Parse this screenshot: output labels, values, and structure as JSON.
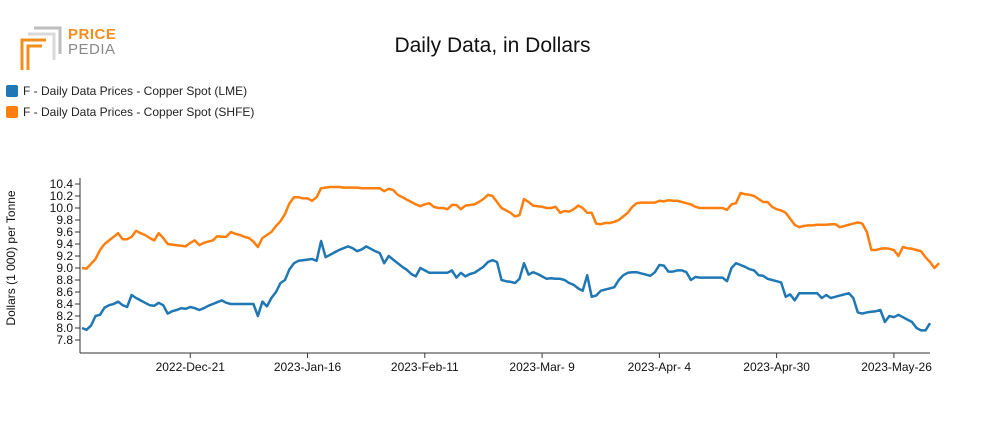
{
  "logo": {
    "line1": "PRICE",
    "line2": "PEDIA"
  },
  "chart_data": {
    "type": "line",
    "title": "Daily Data, in Dollars",
    "xlabel": "",
    "ylabel": "Dollars (1 000) per Tonne",
    "ylim": [
      7.8,
      10.4
    ],
    "yticks": [
      "7.8",
      "8.0",
      "8.2",
      "8.4",
      "8.6",
      "8.8",
      "9.0",
      "9.2",
      "9.4",
      "9.6",
      "9.8",
      "10.0",
      "10.2",
      "10.4"
    ],
    "xticks": [
      "2022-Dec-21",
      "2023-Jan-16",
      "2023-Feb-11",
      "2023-Mar- 9",
      "2023-Apr- 4",
      "2023-Apr-30",
      "2023-May-26"
    ],
    "xticks_index": [
      24,
      50,
      76,
      102,
      128,
      154,
      180
    ],
    "grid": false,
    "legend_position": "top-left",
    "series": [
      {
        "name": "F - Daily Data Prices - Copper Spot (LME)",
        "color": "#1f77b4",
        "values": [
          8.0,
          7.97,
          8.04,
          8.2,
          8.22,
          8.34,
          8.38,
          8.4,
          8.44,
          8.38,
          8.35,
          8.55,
          8.5,
          8.46,
          8.42,
          8.38,
          8.37,
          8.42,
          8.38,
          8.24,
          8.28,
          8.3,
          8.33,
          8.32,
          8.35,
          8.33,
          8.3,
          8.33,
          8.37,
          8.4,
          8.43,
          8.46,
          8.42,
          8.4,
          8.4,
          8.4,
          8.4,
          8.4,
          8.4,
          8.2,
          8.44,
          8.36,
          8.5,
          8.6,
          8.75,
          8.8,
          8.98,
          9.08,
          9.12,
          9.13,
          9.14,
          9.15,
          9.12,
          9.45,
          9.18,
          9.22,
          9.26,
          9.3,
          9.33,
          9.36,
          9.33,
          9.28,
          9.31,
          9.36,
          9.32,
          9.28,
          9.25,
          9.08,
          9.2,
          9.14,
          9.08,
          9.02,
          8.97,
          8.9,
          8.86,
          9.0,
          8.96,
          8.92,
          8.92,
          8.92,
          8.92,
          8.92,
          8.96,
          8.84,
          8.92,
          8.86,
          8.9,
          8.92,
          8.97,
          9.02,
          9.1,
          9.13,
          9.1,
          8.8,
          8.78,
          8.77,
          8.75,
          8.82,
          9.08,
          8.89,
          8.93,
          8.9,
          8.86,
          8.82,
          8.83,
          8.82,
          8.82,
          8.8,
          8.75,
          8.72,
          8.66,
          8.62,
          8.88,
          8.52,
          8.54,
          8.62,
          8.64,
          8.66,
          8.68,
          8.8,
          8.88,
          8.92,
          8.93,
          8.93,
          8.91,
          8.89,
          8.87,
          8.93,
          9.05,
          9.04,
          8.94,
          8.94,
          8.96,
          8.96,
          8.93,
          8.8,
          8.85,
          8.84,
          8.84,
          8.84,
          8.84,
          8.84,
          8.84,
          8.78,
          9.0,
          9.08,
          9.05,
          9.02,
          8.98,
          8.96,
          8.88,
          8.87,
          8.82,
          8.8,
          8.78,
          8.76,
          8.52,
          8.56,
          8.46,
          8.58,
          8.58,
          8.58,
          8.58,
          8.58,
          8.5,
          8.55,
          8.5,
          8.52,
          8.54,
          8.56,
          8.58,
          8.5,
          8.26,
          8.24,
          8.26,
          8.27,
          8.28,
          8.3,
          8.1,
          8.2,
          8.18,
          8.22,
          8.18,
          8.14,
          8.1,
          8.0,
          7.96,
          7.96,
          8.08
        ]
      },
      {
        "name": "F - Daily Data Prices - Copper Spot (SHFE)",
        "color": "#ff7f0e",
        "values": [
          9.0,
          8.99,
          9.07,
          9.15,
          9.3,
          9.4,
          9.46,
          9.52,
          9.58,
          9.48,
          9.48,
          9.52,
          9.62,
          9.58,
          9.55,
          9.5,
          9.46,
          9.58,
          9.5,
          9.4,
          9.39,
          9.38,
          9.37,
          9.36,
          9.42,
          9.46,
          9.38,
          9.42,
          9.44,
          9.46,
          9.53,
          9.52,
          9.52,
          9.6,
          9.57,
          9.55,
          9.52,
          9.5,
          9.44,
          9.35,
          9.5,
          9.55,
          9.6,
          9.7,
          9.78,
          9.9,
          10.08,
          10.18,
          10.18,
          10.16,
          10.16,
          10.12,
          10.18,
          10.33,
          10.34,
          10.35,
          10.35,
          10.35,
          10.34,
          10.34,
          10.34,
          10.34,
          10.33,
          10.33,
          10.33,
          10.33,
          10.33,
          10.28,
          10.32,
          10.3,
          10.22,
          10.18,
          10.14,
          10.1,
          10.06,
          10.03,
          10.06,
          10.08,
          10.02,
          10.0,
          10.0,
          9.98,
          10.05,
          10.05,
          9.98,
          10.04,
          10.05,
          10.06,
          10.1,
          10.15,
          10.22,
          10.2,
          10.1,
          10.0,
          9.96,
          9.92,
          9.86,
          9.88,
          10.15,
          10.1,
          10.04,
          10.03,
          10.02,
          10.0,
          10.0,
          10.02,
          9.92,
          9.95,
          9.94,
          9.98,
          10.04,
          10.0,
          9.92,
          9.92,
          9.74,
          9.73,
          9.75,
          9.75,
          9.77,
          9.8,
          9.86,
          9.92,
          10.02,
          10.08,
          10.09,
          10.09,
          10.09,
          10.09,
          10.12,
          10.11,
          10.13,
          10.12,
          10.12,
          10.1,
          10.08,
          10.06,
          10.02,
          10.0,
          10.0,
          10.0,
          10.0,
          10.0,
          10.0,
          9.97,
          10.06,
          10.08,
          10.25,
          10.23,
          10.22,
          10.2,
          10.15,
          10.1,
          10.1,
          10.02,
          9.98,
          9.96,
          9.92,
          9.82,
          9.72,
          9.68,
          9.7,
          9.71,
          9.71,
          9.72,
          9.72,
          9.72,
          9.73,
          9.73,
          9.68,
          9.7,
          9.72,
          9.74,
          9.76,
          9.74,
          9.6,
          9.3,
          9.3,
          9.32,
          9.33,
          9.32,
          9.3,
          9.2,
          9.35,
          9.33,
          9.32,
          9.3,
          9.28,
          9.18,
          9.1,
          9.0,
          9.08
        ]
      }
    ]
  }
}
